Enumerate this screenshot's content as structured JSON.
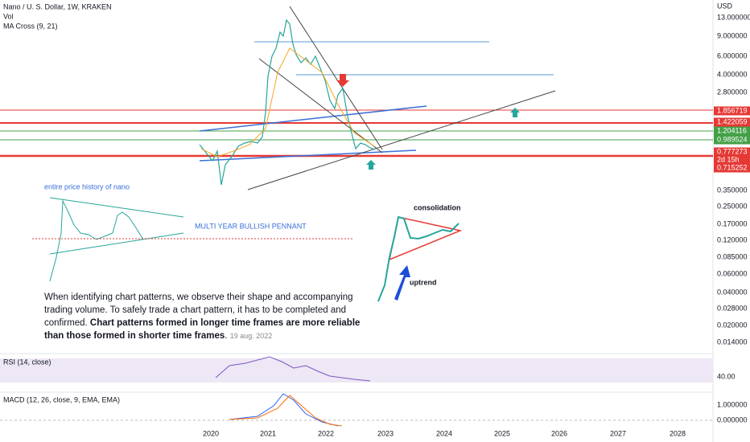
{
  "header": {
    "title": "Nano / U. S. Dollar, 1W, KRAKEN",
    "indicators": [
      "Vol",
      "MA Cross (9, 21)"
    ]
  },
  "price_axis": {
    "currency": "USD",
    "labels": [
      "13.000000",
      "9.000000",
      "6.000000",
      "4.000000",
      "2.800000",
      "0.350000",
      "0.250000",
      "0.170000",
      "0.120000",
      "0.085000",
      "0.060000",
      "0.040000",
      "0.028000",
      "0.020000",
      "0.014000"
    ],
    "badges": [
      "1.856719",
      "1.422059",
      "1.204116",
      "0.989524",
      "0.777273",
      "2d 15h",
      "0.715252"
    ]
  },
  "time_axis": {
    "labels": [
      "2020",
      "2021",
      "2022",
      "2023",
      "2024",
      "2025",
      "2026",
      "2027",
      "2028"
    ]
  },
  "annotations": {
    "inset_title": "entire price history of nano",
    "pennant": "MULTI YEAR BULLISH PENNANT",
    "consolidation": "consolidation",
    "uptrend": "uptrend"
  },
  "note": {
    "text": "When identifying chart patterns, we observe their shape and accompanying trading volume. To safely trade a chart pattern, it has to be completed and confirmed. ",
    "bold": "Chart patterns formed in longer time frames are more reliable than those formed in shorter time frames",
    "end": ".",
    "date": "19 aug. 2022"
  },
  "rsi": {
    "label": "RSI (14, close)",
    "level": "40.00"
  },
  "macd": {
    "label": "MACD (12, 26, close, 9, EMA, EMA)",
    "levels": [
      "1.000000",
      "0.000000"
    ]
  }
}
